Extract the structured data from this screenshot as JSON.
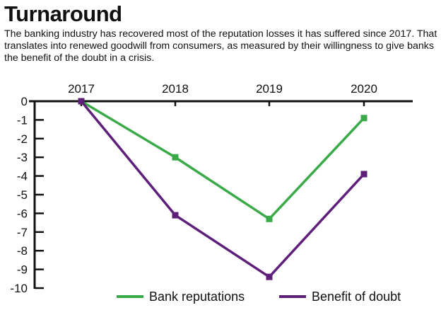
{
  "chart_data": {
    "type": "line",
    "title": "Turnaround",
    "subtitle": "The banking industry has recovered most of the reputation losses it has suffered since 2017. That translates into renewed goodwill from consumers, as measured by their willingness to give banks the benefit of the doubt in a crisis.",
    "categories": [
      "2017",
      "2018",
      "2019",
      "2020"
    ],
    "yticks": [
      "0",
      "-1",
      "-2",
      "-3",
      "-4",
      "-5",
      "-6",
      "-7",
      "-8",
      "-9",
      "-10"
    ],
    "ylim": [
      -10,
      0
    ],
    "xaxis_position": "top",
    "grid": false,
    "legend_position": "bottom-right",
    "series": [
      {
        "name": "Bank reputations",
        "color": "#3aaa48",
        "values": [
          0,
          -3,
          -6.3,
          -0.9
        ]
      },
      {
        "name": "Benefit of doubt",
        "color": "#5e1f7a",
        "values": [
          0,
          -6.1,
          -9.4,
          -3.9
        ]
      }
    ]
  }
}
